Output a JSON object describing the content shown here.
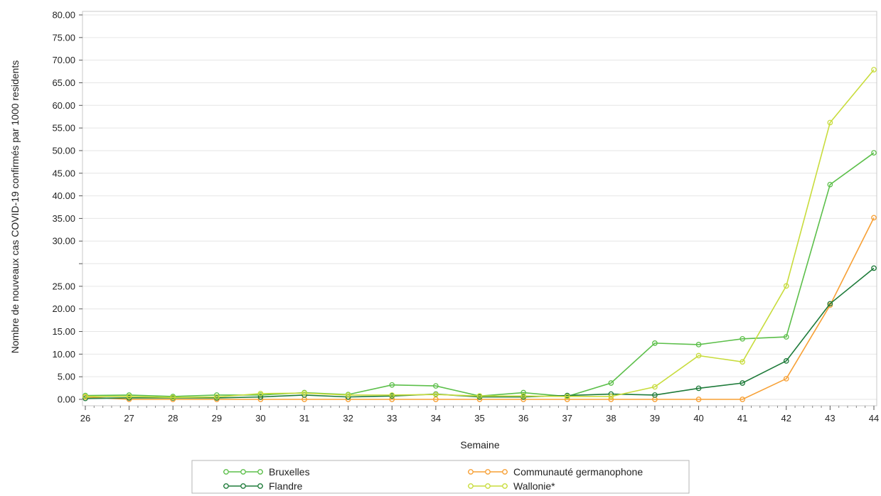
{
  "chart_data": {
    "type": "line",
    "xlabel": "Semaine",
    "ylabel": "Nombre de nouveaux cas COVID-19 confirmés par 1000 residents",
    "x": [
      26,
      27,
      28,
      29,
      30,
      31,
      32,
      33,
      34,
      35,
      36,
      37,
      38,
      39,
      40,
      41,
      42,
      43,
      44
    ],
    "xlim": [
      26,
      44
    ],
    "ylim": [
      0,
      80
    ],
    "y_ticks": [
      "0.00",
      "5.00",
      "10.00",
      "15.00",
      "20.00",
      "25.00",
      "",
      "30.00",
      "35.00",
      "40.00",
      "45.00",
      "50.00",
      "55.00",
      "60.00",
      "65.00",
      "70.00",
      "75.00",
      "80.00"
    ],
    "grid": true,
    "legend_position": "bottom",
    "series": [
      {
        "name": "Bruxelles",
        "color": "#5cbf4a",
        "values": [
          0.8,
          0.9,
          0.6,
          0.9,
          0.9,
          1.4,
          1.0,
          3.0,
          2.8,
          0.7,
          1.4,
          0.6,
          3.4,
          11.7,
          11.4,
          12.6,
          13.0,
          44.7,
          51.3
        ]
      },
      {
        "name": "Communauté germanophone",
        "color": "#f7a035",
        "values": [
          0.5,
          0.0,
          0.0,
          0.0,
          0.0,
          0.0,
          0.0,
          0.0,
          0.0,
          0.0,
          0.0,
          0.0,
          0.0,
          0.0,
          0.0,
          0.0,
          4.3,
          19.6,
          37.8
        ]
      },
      {
        "name": "Flandre",
        "color": "#1e7b3a",
        "values": [
          0.2,
          0.3,
          0.3,
          0.3,
          0.5,
          0.9,
          0.5,
          0.7,
          1.1,
          0.5,
          0.5,
          0.8,
          1.1,
          0.9,
          2.3,
          3.4,
          8.0,
          19.9,
          27.3
        ]
      },
      {
        "name": "Wallonie*",
        "color": "#c8dc3c",
        "values": [
          0.6,
          0.6,
          0.4,
          0.5,
          1.2,
          1.3,
          0.9,
          0.9,
          1.0,
          0.7,
          0.7,
          0.6,
          0.6,
          2.6,
          9.1,
          7.8,
          23.6,
          57.6,
          68.6
        ]
      }
    ]
  }
}
